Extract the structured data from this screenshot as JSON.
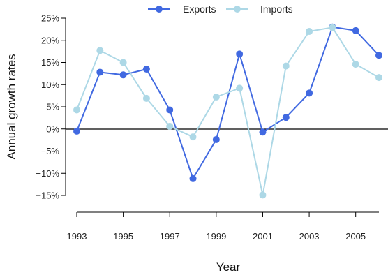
{
  "chart_data": {
    "type": "line",
    "xlabel": "Year",
    "ylabel": "Annual growth rates",
    "xlim": [
      1993,
      2006
    ],
    "ylim": [
      -15,
      25
    ],
    "x_ticks": [
      1993,
      1995,
      1997,
      1999,
      2001,
      2003,
      2005
    ],
    "x_tick_labels": [
      "1993",
      "1995",
      "1997",
      "1999",
      "2001",
      "2003",
      "2005"
    ],
    "y_ticks": [
      -15,
      -10,
      -5,
      0,
      5,
      10,
      15,
      20,
      25
    ],
    "y_tick_labels": [
      "−15%",
      "−10%",
      "−5%",
      "0%",
      "5%",
      "10%",
      "15%",
      "20%",
      "25%"
    ],
    "reference_line_y": 0,
    "legend_position": "top-center",
    "x": [
      1993,
      1994,
      1995,
      1996,
      1997,
      1998,
      1999,
      2000,
      2001,
      2002,
      2003,
      2004,
      2005,
      2006
    ],
    "series": [
      {
        "name": "Exports",
        "color": "#4169E1",
        "values": [
          -0.5,
          12.8,
          12.2,
          13.5,
          4.3,
          -11.2,
          -2.4,
          16.9,
          -0.7,
          2.6,
          8.1,
          23.0,
          22.2,
          16.6
        ]
      },
      {
        "name": "Imports",
        "color": "#ADD8E6",
        "values": [
          4.3,
          17.7,
          15.0,
          6.9,
          0.6,
          -1.8,
          7.2,
          9.2,
          -14.9,
          14.2,
          22.0,
          22.9,
          14.6,
          11.6
        ]
      }
    ]
  }
}
